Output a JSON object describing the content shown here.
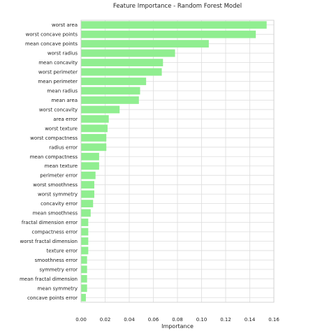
{
  "chart_data": {
    "type": "bar",
    "orientation": "horizontal",
    "title": "Feature Importance - Random Forest Model",
    "xlabel": "Importance",
    "ylabel": "",
    "xlim": [
      0.0,
      0.16
    ],
    "x_ticks": [
      0.0,
      0.02,
      0.04,
      0.06,
      0.08,
      0.1,
      0.12,
      0.14,
      0.16
    ],
    "x_tick_labels": [
      "0.00",
      "0.02",
      "0.04",
      "0.06",
      "0.08",
      "0.10",
      "0.12",
      "0.14",
      "0.16"
    ],
    "grid": true,
    "bar_color": "#90ee90",
    "categories": [
      "worst area",
      "worst concave points",
      "mean concave points",
      "worst radius",
      "mean concavity",
      "worst perimeter",
      "mean perimeter",
      "mean radius",
      "mean area",
      "worst concavity",
      "area error",
      "worst texture",
      "worst compactness",
      "radius error",
      "mean compactness",
      "mean texture",
      "perimeter error",
      "worst smoothness",
      "worst symmetry",
      "concavity error",
      "mean smoothness",
      "fractal dimension error",
      "compactness error",
      "worst fractal dimension",
      "texture error",
      "smoothness error",
      "symmetry error",
      "mean fractal dimension",
      "mean symmetry",
      "concave points error"
    ],
    "values": [
      0.154,
      0.145,
      0.106,
      0.078,
      0.068,
      0.067,
      0.054,
      0.049,
      0.048,
      0.032,
      0.023,
      0.022,
      0.021,
      0.021,
      0.015,
      0.015,
      0.012,
      0.011,
      0.011,
      0.01,
      0.008,
      0.006,
      0.006,
      0.006,
      0.006,
      0.005,
      0.005,
      0.005,
      0.005,
      0.004
    ]
  }
}
